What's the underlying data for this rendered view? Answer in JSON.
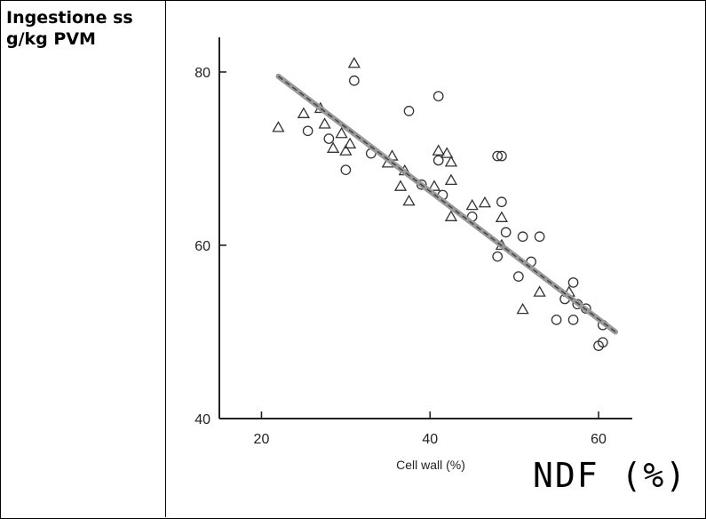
{
  "ylabel_lines": [
    "Ingestione ss",
    "g/kg PVM"
  ],
  "chart_data": {
    "type": "scatter",
    "xlabel": "Cell wall (%)",
    "handwritten_xlabel": "NDF (%)",
    "xlim": [
      15,
      64
    ],
    "ylim": [
      40,
      84
    ],
    "x_ticks": [
      20,
      40,
      60
    ],
    "y_ticks": [
      40,
      60,
      80
    ],
    "series": [
      {
        "marker": "circle",
        "points": [
          [
            25.5,
            73.2
          ],
          [
            28,
            72.3
          ],
          [
            30,
            68.7
          ],
          [
            31,
            79
          ],
          [
            33,
            70.6
          ],
          [
            37.5,
            75.5
          ],
          [
            39,
            67
          ],
          [
            41,
            77.2
          ],
          [
            41,
            69.8
          ],
          [
            41.5,
            65.8
          ],
          [
            45,
            63.3
          ],
          [
            48,
            70.3
          ],
          [
            48.5,
            70.3
          ],
          [
            48.5,
            65
          ],
          [
            49,
            61.5
          ],
          [
            48,
            58.7
          ],
          [
            50.5,
            56.4
          ],
          [
            51,
            61
          ],
          [
            52,
            58.1
          ],
          [
            53,
            61
          ],
          [
            55,
            51.4
          ],
          [
            56,
            53.8
          ],
          [
            57,
            51.4
          ],
          [
            57,
            55.7
          ],
          [
            57.5,
            53.2
          ],
          [
            58.5,
            52.7
          ],
          [
            60,
            48.4
          ],
          [
            60.5,
            48.8
          ],
          [
            60.5,
            50.8
          ]
        ]
      },
      {
        "marker": "triangle",
        "points": [
          [
            22,
            73.6
          ],
          [
            25,
            75.2
          ],
          [
            27,
            75.8
          ],
          [
            27.5,
            74
          ],
          [
            28.5,
            71.2
          ],
          [
            29.5,
            72.9
          ],
          [
            30,
            70.9
          ],
          [
            30.5,
            71.7
          ],
          [
            31,
            81
          ],
          [
            35,
            69.5
          ],
          [
            35.5,
            70.3
          ],
          [
            36.5,
            66.8
          ],
          [
            37,
            68.6
          ],
          [
            37.5,
            65.1
          ],
          [
            40.5,
            66.8
          ],
          [
            41,
            70.9
          ],
          [
            42,
            70.6
          ],
          [
            42.5,
            69.6
          ],
          [
            42.5,
            63.3
          ],
          [
            42.5,
            67.5
          ],
          [
            45,
            64.6
          ],
          [
            46.5,
            64.9
          ],
          [
            48.5,
            63.2
          ],
          [
            48.5,
            60
          ],
          [
            51,
            52.6
          ],
          [
            53,
            54.6
          ],
          [
            56.5,
            54.6
          ]
        ]
      }
    ],
    "trend_line": {
      "x": [
        22,
        62
      ],
      "y": [
        79.5,
        50
      ]
    },
    "grid": false
  }
}
